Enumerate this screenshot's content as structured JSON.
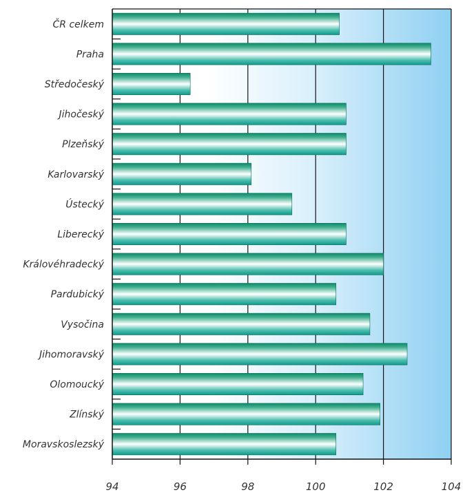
{
  "chart_data": {
    "type": "bar",
    "orientation": "horizontal",
    "categories": [
      "ČR celkem",
      "Praha",
      "Středočeský",
      "Jihočeský",
      "Plzeňský",
      "Karlovarský",
      "Ústecký",
      "Liberecký",
      "Královéhradecký",
      "Pardubický",
      "Vysočina",
      "Jihomoravský",
      "Olomoucký",
      "Zlínský",
      "Moravskoslezský"
    ],
    "values": [
      100.7,
      103.4,
      96.3,
      100.9,
      100.9,
      98.1,
      99.3,
      100.9,
      102.0,
      100.6,
      101.6,
      102.7,
      101.4,
      101.9,
      100.6
    ],
    "xlim": [
      94,
      104
    ],
    "xticks": [
      94,
      96,
      98,
      100,
      102,
      104
    ],
    "title": "",
    "xlabel": "",
    "ylabel": "",
    "grid": "vertical lines at 96, 98, 100, 102",
    "colors": {
      "bar_dark": "#0e8a6a",
      "bar_mid": "#20a890",
      "bar_light": "#ffffff",
      "bg_light": "#ffffff",
      "bg_dark": "#8fd0f2",
      "grid": "#111111"
    }
  }
}
